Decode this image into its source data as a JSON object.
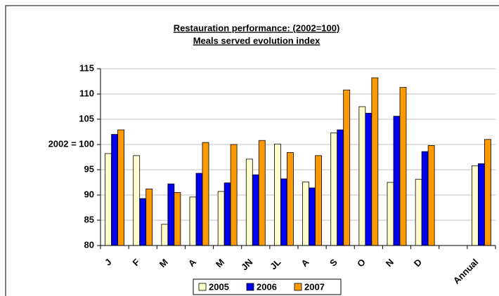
{
  "chart_data": {
    "type": "bar",
    "title": "Restauration performance: (2002=100)",
    "subtitle": "Meals served evolution index",
    "categories": [
      "J",
      "F",
      "M",
      "A",
      "M",
      "JN",
      "JL",
      "A",
      "S",
      "O",
      "N",
      "D",
      null,
      "Annual"
    ],
    "series": [
      {
        "name": "2005",
        "color": "#ffffcc",
        "values": [
          98.2,
          97.8,
          84.2,
          89.6,
          90.7,
          97.1,
          100.1,
          92.6,
          102.3,
          107.5,
          92.5,
          93.1,
          null,
          95.8
        ]
      },
      {
        "name": "2006",
        "color": "#0000ee",
        "values": [
          102,
          89.3,
          92.2,
          94.3,
          92.4,
          94,
          93.2,
          91.4,
          102.9,
          106.2,
          105.6,
          98.6,
          null,
          96.2
        ]
      },
      {
        "name": "2007",
        "color": "#ff9900",
        "values": [
          102.9,
          91.2,
          90.5,
          100.4,
          100,
          100.8,
          98.4,
          97.8,
          110.8,
          113.2,
          111.3,
          99.8,
          null,
          101
        ]
      }
    ],
    "ylim": [
      80,
      115
    ],
    "yticks": [
      80,
      85,
      90,
      95,
      {
        "value": 100,
        "label": "2002 = 100"
      },
      105,
      110,
      115
    ],
    "grid": true,
    "legend": "bottom"
  }
}
